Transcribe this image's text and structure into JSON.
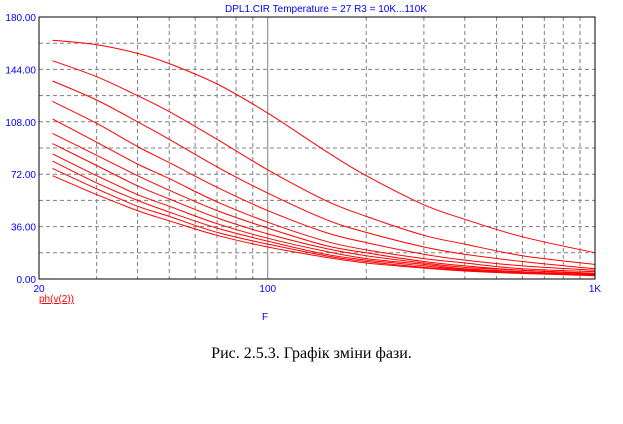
{
  "caption": "Рис. 2.5.3. Графік зміни фази.",
  "colors": {
    "axis_text": "#0000ff",
    "curve": "#ff0000",
    "grid": "#808080",
    "frame": "#000000"
  },
  "chart_data": {
    "type": "line",
    "title": "DPL1.CIR Temperature = 27 R3 = 10K...110K",
    "legend": "ph(v(2))",
    "xlabel": "F",
    "ylabel": "",
    "x_scale": "log",
    "xlim": [
      20,
      1000
    ],
    "ylim": [
      0,
      180
    ],
    "grid": true,
    "x_ticks": [
      {
        "value": 20,
        "label": "20"
      },
      {
        "value": 100,
        "label": "100"
      },
      {
        "value": 1000,
        "label": "1K"
      }
    ],
    "y_ticks": [
      {
        "value": 0,
        "label": "0.00"
      },
      {
        "value": 36,
        "label": "36.00"
      },
      {
        "value": 72,
        "label": "72.00"
      },
      {
        "value": 108,
        "label": "108.00"
      },
      {
        "value": 144,
        "label": "144.00"
      },
      {
        "value": 180,
        "label": "180.00"
      }
    ],
    "x": [
      22,
      30,
      40,
      50,
      70,
      100,
      150,
      200,
      300,
      400,
      600,
      1000
    ],
    "series": [
      {
        "values": [
          164,
          161,
          155,
          148,
          134,
          114,
          88,
          71,
          51,
          41,
          29,
          18
        ]
      },
      {
        "values": [
          150,
          139,
          126,
          115,
          96,
          75,
          54,
          43,
          30,
          24,
          16,
          10
        ]
      },
      {
        "values": [
          136,
          123,
          108,
          96,
          77,
          59,
          41,
          32,
          22,
          17,
          12,
          7
        ]
      },
      {
        "values": [
          122,
          107,
          91,
          80,
          63,
          47,
          32,
          25,
          17,
          13,
          9,
          6
        ]
      },
      {
        "values": [
          110,
          94,
          79,
          69,
          53,
          39,
          26,
          20,
          14,
          11,
          7,
          5
        ]
      },
      {
        "values": [
          100,
          85,
          71,
          61,
          47,
          35,
          23,
          18,
          12,
          9,
          6,
          4
        ]
      },
      {
        "values": [
          93,
          78,
          64,
          55,
          42,
          31,
          21,
          16,
          11,
          8,
          6,
          3.5
        ]
      },
      {
        "values": [
          86,
          71,
          58,
          50,
          38,
          28,
          19,
          14,
          10,
          7,
          5,
          3
        ]
      },
      {
        "values": [
          81,
          66,
          54,
          46,
          35,
          26,
          17,
          13,
          9,
          6.5,
          4.5,
          3
        ]
      },
      {
        "values": [
          76,
          62,
          50,
          43,
          32,
          24,
          16,
          12,
          8,
          6,
          4,
          2.5
        ]
      },
      {
        "values": [
          71,
          58,
          47,
          40,
          30,
          22,
          15,
          11,
          7.5,
          5.5,
          3.8,
          2.3
        ]
      }
    ]
  }
}
